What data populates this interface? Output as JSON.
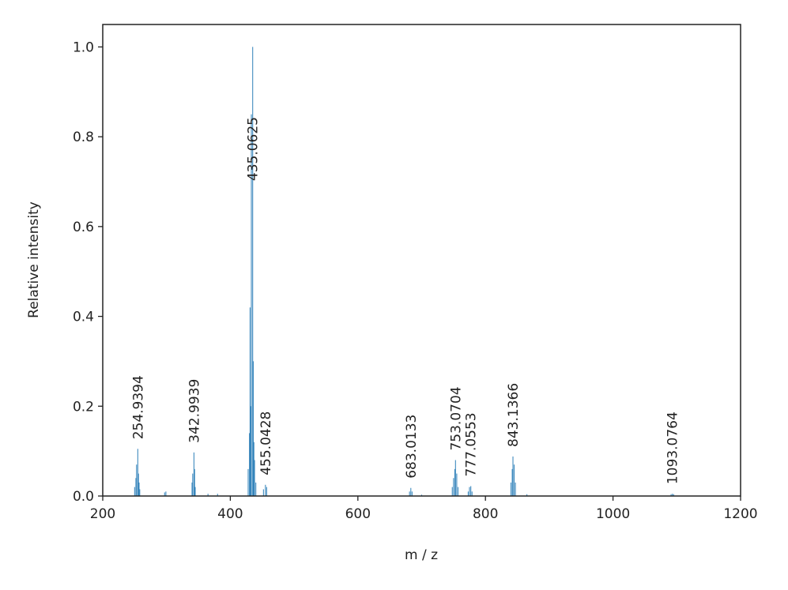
{
  "chart_data": {
    "type": "stem",
    "x_label": "m / z",
    "y_label": "Relative intensity",
    "color": "#1f77b4",
    "xlim": [
      200,
      1200
    ],
    "ylim": [
      0,
      1.05
    ],
    "xticks": [
      200,
      400,
      600,
      800,
      1000,
      1200
    ],
    "yticks": [
      {
        "value": 0,
        "label": "0.0"
      },
      0.2,
      0.4,
      0.6,
      0.8,
      {
        "value": 1,
        "label": "1.0"
      }
    ],
    "x": [
      250,
      252,
      253,
      254.9394,
      256,
      257,
      258,
      297,
      299,
      340,
      341,
      342.9939,
      344,
      345,
      365,
      380,
      428,
      430,
      431,
      432,
      433,
      435.0625,
      436,
      437,
      438,
      440,
      452,
      455.0428,
      457,
      681,
      683.0133,
      685,
      700,
      748,
      750,
      752,
      753.0704,
      755,
      757,
      773,
      775,
      777.0553,
      779,
      840,
      842,
      843.1366,
      845,
      847,
      865,
      1091,
      1093.0764,
      1095
    ],
    "values": [
      0.02,
      0.04,
      0.07,
      0.105,
      0.05,
      0.03,
      0.015,
      0.008,
      0.01,
      0.03,
      0.05,
      0.097,
      0.06,
      0.02,
      0.005,
      0.005,
      0.06,
      0.14,
      0.42,
      0.2,
      0.85,
      1.0,
      0.3,
      0.12,
      0.08,
      0.03,
      0.015,
      0.025,
      0.02,
      0.01,
      0.018,
      0.01,
      0.003,
      0.02,
      0.04,
      0.06,
      0.08,
      0.05,
      0.02,
      0.01,
      0.02,
      0.022,
      0.01,
      0.03,
      0.06,
      0.088,
      0.07,
      0.03,
      0.004,
      0.004,
      0.005,
      0.004
    ],
    "annotations": [
      {
        "x": 254.9394,
        "y": 0.105,
        "label": "254.9394"
      },
      {
        "x": 342.9939,
        "y": 0.097,
        "label": "342.9939"
      },
      {
        "x": 435.0625,
        "y": 1.0,
        "label": "435.0625"
      },
      {
        "x": 455.0428,
        "y": 0.025,
        "label": "455.0428"
      },
      {
        "x": 683.0133,
        "y": 0.018,
        "label": "683.0133"
      },
      {
        "x": 753.0704,
        "y": 0.08,
        "label": "753.0704"
      },
      {
        "x": 777.0553,
        "y": 0.022,
        "label": "777.0553"
      },
      {
        "x": 843.1366,
        "y": 0.088,
        "label": "843.1366"
      },
      {
        "x": 1093.0764,
        "y": 0.005,
        "label": "1093.0764"
      }
    ]
  }
}
